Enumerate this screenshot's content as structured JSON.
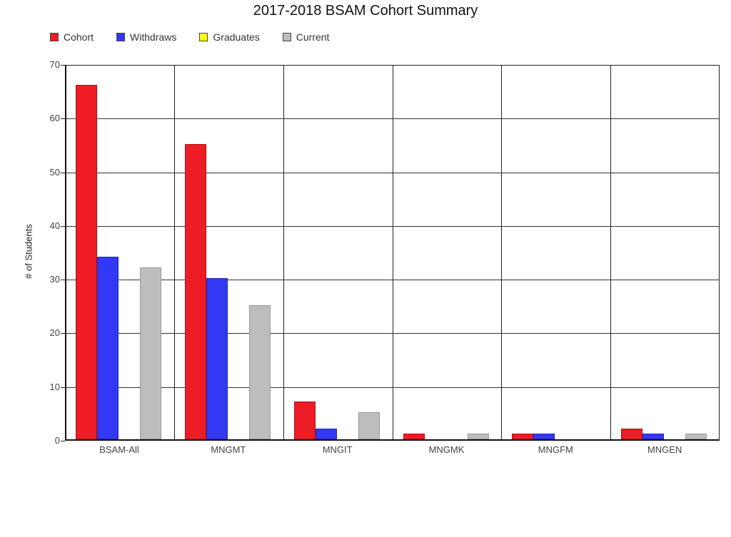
{
  "chart_data": {
    "type": "bar",
    "title": "2017-2018 BSAM Cohort Summary",
    "xlabel": "",
    "ylabel": "# of Students",
    "ylim": [
      0,
      70
    ],
    "yticks": [
      0,
      10,
      20,
      30,
      40,
      50,
      60,
      70
    ],
    "grid": true,
    "legend_position": "top-left",
    "categories": [
      "BSAM-All",
      "MNGMT",
      "MNGIT",
      "MNGMK",
      "MNGFM",
      "MNGEN"
    ],
    "series": [
      {
        "name": "Cohort",
        "color": "#ee1c24",
        "values": [
          66,
          55,
          7,
          1,
          1,
          2
        ]
      },
      {
        "name": "Withdraws",
        "color": "#3338f5",
        "values": [
          34,
          30,
          2,
          0,
          1,
          1
        ]
      },
      {
        "name": "Graduates",
        "color": "#ffff00",
        "values": [
          0,
          0,
          0,
          0,
          0,
          0
        ]
      },
      {
        "name": "Current",
        "color": "#bdbdbd",
        "values": [
          32,
          25,
          5,
          1,
          0,
          1
        ]
      }
    ]
  }
}
